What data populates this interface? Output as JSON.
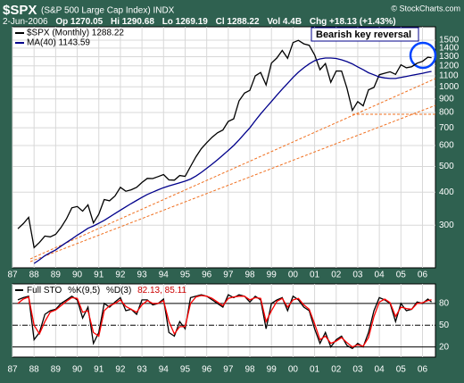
{
  "chart_data": [
    {
      "type": "line",
      "title": "$SPX",
      "subtitle": "(S&P 500 Large Cap Index) INDX",
      "watermark": "© StockCharts.com",
      "info": [
        "2-Jun-2006",
        "Op 1270.05",
        "Hi 1290.68",
        "Lo 1269.19",
        "Cl 1288.22",
        "Vol 4.4B",
        "Chg +18.13 (+1.43%)"
      ],
      "annotation": "Bearish key reversal",
      "log_scale": true,
      "grid": true,
      "legend": "top-left",
      "x": [
        1987.25,
        1987.5,
        1987.75,
        1988,
        1988.25,
        1988.5,
        1988.75,
        1989,
        1989.25,
        1989.5,
        1989.75,
        1990,
        1990.25,
        1990.5,
        1990.75,
        1991,
        1991.25,
        1991.5,
        1991.75,
        1992,
        1992.25,
        1992.5,
        1992.75,
        1993,
        1993.25,
        1993.5,
        1993.75,
        1994,
        1994.25,
        1994.5,
        1994.75,
        1995,
        1995.25,
        1995.5,
        1995.75,
        1996,
        1996.25,
        1996.5,
        1996.75,
        1997,
        1997.25,
        1997.5,
        1997.75,
        1998,
        1998.25,
        1998.5,
        1998.75,
        1999,
        1999.25,
        1999.5,
        1999.75,
        2000,
        2000.25,
        2000.5,
        2000.75,
        2001,
        2001.25,
        2001.5,
        2001.75,
        2002,
        2002.25,
        2002.5,
        2002.75,
        2003,
        2003.25,
        2003.5,
        2003.75,
        2004,
        2004.25,
        2004.5,
        2004.75,
        2005,
        2005.25,
        2005.5,
        2005.75,
        2006,
        2006.25,
        2006.42
      ],
      "series": [
        {
          "name": "$SPX (Monthly) 1288.22",
          "color": "#000000",
          "values": [
            291,
            304,
            321,
            247,
            258,
            273,
            271,
            277,
            294,
            317,
            349,
            353,
            339,
            358,
            306,
            330,
            375,
            371,
            387,
            417,
            403,
            408,
            417,
            435,
            451,
            450,
            458,
            466,
            445,
            444,
            462,
            459,
            500,
            544,
            584,
            615,
            645,
            670,
            687,
            740,
            757,
            885,
            947,
            970,
            1101,
            1133,
            1017,
            1229,
            1286,
            1372,
            1282,
            1469,
            1498,
            1454,
            1436,
            1320,
            1160,
            1224,
            1040,
            1148,
            1147,
            989,
            815,
            879,
            848,
            974,
            995,
            1111,
            1126,
            1140,
            1114,
            1211,
            1180,
            1191,
            1228,
            1248,
            1294,
            1288.22
          ]
        },
        {
          "name": "MA(40) 1143.59",
          "color": "#00008b",
          "values": [
            null,
            null,
            null,
            215,
            222,
            230,
            236,
            242,
            250,
            258,
            266,
            275,
            283,
            292,
            298,
            305,
            313,
            322,
            332,
            342,
            352,
            362,
            372,
            382,
            392,
            400,
            408,
            416,
            422,
            428,
            434,
            440,
            448,
            460,
            475,
            492,
            510,
            530,
            552,
            575,
            600,
            630,
            665,
            700,
            745,
            790,
            835,
            880,
            930,
            980,
            1030,
            1085,
            1135,
            1180,
            1220,
            1255,
            1275,
            1285,
            1285,
            1280,
            1265,
            1245,
            1220,
            1190,
            1160,
            1130,
            1110,
            1090,
            1080,
            1075,
            1075,
            1085,
            1095,
            1105,
            1115,
            1125,
            1137,
            1143.59
          ]
        }
      ],
      "xlim": [
        1987,
        2006.6
      ],
      "xticks": [
        {
          "value": 1987,
          "label": "87"
        },
        {
          "value": 1988,
          "label": "88"
        },
        {
          "value": 1989,
          "label": "89"
        },
        {
          "value": 1990,
          "label": "90"
        },
        {
          "value": 1991,
          "label": "91"
        },
        {
          "value": 1992,
          "label": "92"
        },
        {
          "value": 1993,
          "label": "93"
        },
        {
          "value": 1994,
          "label": "94"
        },
        {
          "value": 1995,
          "label": "95"
        },
        {
          "value": 1996,
          "label": "96"
        },
        {
          "value": 1997,
          "label": "97"
        },
        {
          "value": 1998,
          "label": "98"
        },
        {
          "value": 1999,
          "label": "99"
        },
        {
          "value": 2000,
          "label": "00"
        },
        {
          "value": 2001,
          "label": "01"
        },
        {
          "value": 2002,
          "label": "02"
        },
        {
          "value": 2003,
          "label": "03"
        },
        {
          "value": 2004,
          "label": "04"
        },
        {
          "value": 2005,
          "label": "05"
        },
        {
          "value": 2006,
          "label": "06"
        }
      ],
      "ylim": [
        207,
        1686
      ],
      "yticks": [
        300,
        400,
        500,
        600,
        700,
        800,
        900,
        1000,
        1100,
        1200,
        1300,
        1400,
        1500
      ]
    },
    {
      "type": "line",
      "label": "Full STO",
      "readout": "82.13, 85.11",
      "grid": true,
      "x": [
        1987.25,
        1987.5,
        1987.75,
        1988,
        1988.25,
        1988.5,
        1988.75,
        1989,
        1989.25,
        1989.5,
        1989.75,
        1990,
        1990.25,
        1990.5,
        1990.75,
        1991,
        1991.25,
        1991.5,
        1991.75,
        1992,
        1992.25,
        1992.5,
        1992.75,
        1993,
        1993.25,
        1993.5,
        1993.75,
        1994,
        1994.25,
        1994.5,
        1994.75,
        1995,
        1995.25,
        1995.5,
        1995.75,
        1996,
        1996.25,
        1996.5,
        1996.75,
        1997,
        1997.25,
        1997.5,
        1997.75,
        1998,
        1998.25,
        1998.5,
        1998.75,
        1999,
        1999.25,
        1999.5,
        1999.75,
        2000,
        2000.25,
        2000.5,
        2000.75,
        2001,
        2001.25,
        2001.5,
        2001.75,
        2002,
        2002.25,
        2002.5,
        2002.75,
        2003,
        2003.25,
        2003.5,
        2003.75,
        2004,
        2004.25,
        2004.5,
        2004.75,
        2005,
        2005.25,
        2005.5,
        2005.75,
        2006,
        2006.25,
        2006.42
      ],
      "series": [
        {
          "name": "%K(9,5)",
          "color": "#000000",
          "values": [
            85,
            88,
            90,
            30,
            40,
            65,
            70,
            72,
            80,
            85,
            90,
            85,
            60,
            75,
            25,
            40,
            80,
            75,
            82,
            88,
            70,
            72,
            65,
            85,
            85,
            78,
            80,
            86,
            40,
            35,
            55,
            45,
            88,
            90,
            92,
            90,
            85,
            80,
            75,
            92,
            88,
            92,
            90,
            82,
            90,
            85,
            45,
            80,
            85,
            88,
            70,
            90,
            85,
            75,
            70,
            45,
            25,
            40,
            20,
            30,
            35,
            22,
            18,
            25,
            20,
            40,
            70,
            88,
            85,
            80,
            55,
            80,
            70,
            72,
            82,
            80,
            86,
            82.13
          ]
        },
        {
          "name": "%D(3)",
          "color": "#ff0000",
          "values": [
            80,
            86,
            89,
            50,
            38,
            55,
            68,
            71,
            77,
            83,
            88,
            87,
            68,
            70,
            40,
            35,
            70,
            77,
            80,
            85,
            76,
            72,
            68,
            78,
            84,
            80,
            80,
            84,
            55,
            38,
            48,
            48,
            80,
            89,
            91,
            90,
            87,
            82,
            77,
            87,
            89,
            90,
            90,
            85,
            88,
            87,
            55,
            70,
            83,
            87,
            75,
            85,
            87,
            78,
            72,
            52,
            30,
            35,
            25,
            28,
            33,
            26,
            20,
            23,
            21,
            33,
            62,
            82,
            86,
            81,
            62,
            75,
            73,
            72,
            80,
            81,
            84,
            85.11
          ]
        }
      ],
      "xlim": [
        1987,
        2006.6
      ],
      "xticks": [
        {
          "value": 1987,
          "label": "87"
        },
        {
          "value": 1988,
          "label": "88"
        },
        {
          "value": 1989,
          "label": "89"
        },
        {
          "value": 1990,
          "label": "90"
        },
        {
          "value": 1991,
          "label": "91"
        },
        {
          "value": 1992,
          "label": "92"
        },
        {
          "value": 1993,
          "label": "93"
        },
        {
          "value": 1994,
          "label": "94"
        },
        {
          "value": 1995,
          "label": "95"
        },
        {
          "value": 1996,
          "label": "96"
        },
        {
          "value": 1997,
          "label": "97"
        },
        {
          "value": 1998,
          "label": "98"
        },
        {
          "value": 1999,
          "label": "99"
        },
        {
          "value": 2000,
          "label": "00"
        },
        {
          "value": 2001,
          "label": "01"
        },
        {
          "value": 2002,
          "label": "02"
        },
        {
          "value": 2003,
          "label": "03"
        },
        {
          "value": 2004,
          "label": "04"
        },
        {
          "value": 2005,
          "label": "05"
        },
        {
          "value": 2006,
          "label": "06"
        }
      ],
      "ylim": [
        6,
        107
      ],
      "yticks": [
        20,
        50,
        80
      ]
    }
  ]
}
